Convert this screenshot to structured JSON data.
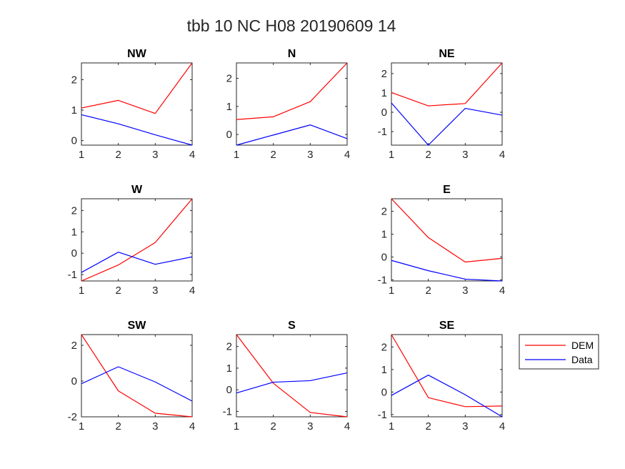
{
  "figure": {
    "title": "tbb 10 NC H08 20190609 14",
    "background": "#ffffff",
    "axis_color": "#262626"
  },
  "legend": {
    "placement": "right-of-SE",
    "entries": [
      {
        "label": "DEM",
        "color": "#ff0000"
      },
      {
        "label": "Data",
        "color": "#0000ff"
      }
    ]
  },
  "chart_data": [
    {
      "type": "line",
      "title": "NW",
      "grid": false,
      "x": [
        1,
        2,
        3,
        4
      ],
      "xlim": [
        1,
        4
      ],
      "xticks": [
        1,
        2,
        3,
        4
      ],
      "ylim": [
        -0.15,
        2.55
      ],
      "yticks": [
        0,
        1,
        2
      ],
      "series": [
        {
          "name": "DEM",
          "color": "#ff0000",
          "values": [
            1.07,
            1.32,
            0.89,
            2.55
          ]
        },
        {
          "name": "Data",
          "color": "#0000ff",
          "values": [
            0.85,
            0.55,
            0.19,
            -0.15
          ]
        }
      ]
    },
    {
      "type": "line",
      "title": "N",
      "grid": false,
      "x": [
        1,
        2,
        3,
        4
      ],
      "xlim": [
        1,
        4
      ],
      "xticks": [
        1,
        2,
        3,
        4
      ],
      "ylim": [
        -0.38,
        2.55
      ],
      "yticks": [
        0,
        1,
        2
      ],
      "series": [
        {
          "name": "DEM",
          "color": "#ff0000",
          "values": [
            0.53,
            0.63,
            1.17,
            2.55
          ]
        },
        {
          "name": "Data",
          "color": "#0000ff",
          "values": [
            -0.38,
            -0.02,
            0.34,
            -0.15
          ]
        }
      ]
    },
    {
      "type": "line",
      "title": "NE",
      "grid": false,
      "x": [
        1,
        2,
        3,
        4
      ],
      "xlim": [
        1,
        4
      ],
      "xticks": [
        1,
        2,
        3,
        4
      ],
      "ylim": [
        -1.7,
        2.55
      ],
      "yticks": [
        -1,
        0,
        1,
        2
      ],
      "series": [
        {
          "name": "DEM",
          "color": "#ff0000",
          "values": [
            1.02,
            0.33,
            0.45,
            2.55
          ]
        },
        {
          "name": "Data",
          "color": "#0000ff",
          "values": [
            0.48,
            -1.7,
            0.2,
            -0.15
          ]
        }
      ]
    },
    {
      "type": "line",
      "title": "W",
      "grid": false,
      "x": [
        1,
        2,
        3,
        4
      ],
      "xlim": [
        1,
        4
      ],
      "xticks": [
        1,
        2,
        3,
        4
      ],
      "ylim": [
        -1.3,
        2.55
      ],
      "yticks": [
        -1,
        0,
        1,
        2
      ],
      "series": [
        {
          "name": "DEM",
          "color": "#ff0000",
          "values": [
            -1.3,
            -0.55,
            0.5,
            2.55
          ]
        },
        {
          "name": "Data",
          "color": "#0000ff",
          "values": [
            -0.9,
            0.05,
            -0.52,
            -0.17
          ]
        }
      ]
    },
    {
      "type": "line",
      "title": "E",
      "grid": false,
      "x": [
        1,
        2,
        3,
        4
      ],
      "xlim": [
        1,
        4
      ],
      "xticks": [
        1,
        2,
        3,
        4
      ],
      "ylim": [
        -1.05,
        2.55
      ],
      "yticks": [
        -1,
        0,
        1,
        2
      ],
      "series": [
        {
          "name": "DEM",
          "color": "#ff0000",
          "values": [
            2.55,
            0.85,
            -0.22,
            -0.06
          ]
        },
        {
          "name": "Data",
          "color": "#0000ff",
          "values": [
            -0.15,
            -0.6,
            -0.97,
            -1.05
          ]
        }
      ]
    },
    {
      "type": "line",
      "title": "SW",
      "grid": false,
      "x": [
        1,
        2,
        3,
        4
      ],
      "xlim": [
        1,
        4
      ],
      "xticks": [
        1,
        2,
        3,
        4
      ],
      "ylim": [
        -2.0,
        2.6
      ],
      "yticks": [
        -2,
        0,
        2
      ],
      "series": [
        {
          "name": "DEM",
          "color": "#ff0000",
          "values": [
            2.6,
            -0.55,
            -1.8,
            -2.0
          ]
        },
        {
          "name": "Data",
          "color": "#0000ff",
          "values": [
            -0.15,
            0.8,
            -0.05,
            -1.12
          ]
        }
      ]
    },
    {
      "type": "line",
      "title": "S",
      "grid": false,
      "x": [
        1,
        2,
        3,
        4
      ],
      "xlim": [
        1,
        4
      ],
      "xticks": [
        1,
        2,
        3,
        4
      ],
      "ylim": [
        -1.25,
        2.55
      ],
      "yticks": [
        -1,
        0,
        1,
        2
      ],
      "series": [
        {
          "name": "DEM",
          "color": "#ff0000",
          "values": [
            2.55,
            0.3,
            -1.05,
            -1.25
          ]
        },
        {
          "name": "Data",
          "color": "#0000ff",
          "values": [
            -0.15,
            0.35,
            0.42,
            0.78
          ]
        }
      ]
    },
    {
      "type": "line",
      "title": "SE",
      "grid": false,
      "x": [
        1,
        2,
        3,
        4
      ],
      "xlim": [
        1,
        4
      ],
      "xticks": [
        1,
        2,
        3,
        4
      ],
      "ylim": [
        -1.1,
        2.55
      ],
      "yticks": [
        -1,
        0,
        1,
        2
      ],
      "series": [
        {
          "name": "DEM",
          "color": "#ff0000",
          "values": [
            2.55,
            -0.25,
            -0.65,
            -0.62
          ]
        },
        {
          "name": "Data",
          "color": "#0000ff",
          "values": [
            -0.15,
            0.75,
            -0.12,
            -1.1
          ]
        }
      ]
    }
  ]
}
